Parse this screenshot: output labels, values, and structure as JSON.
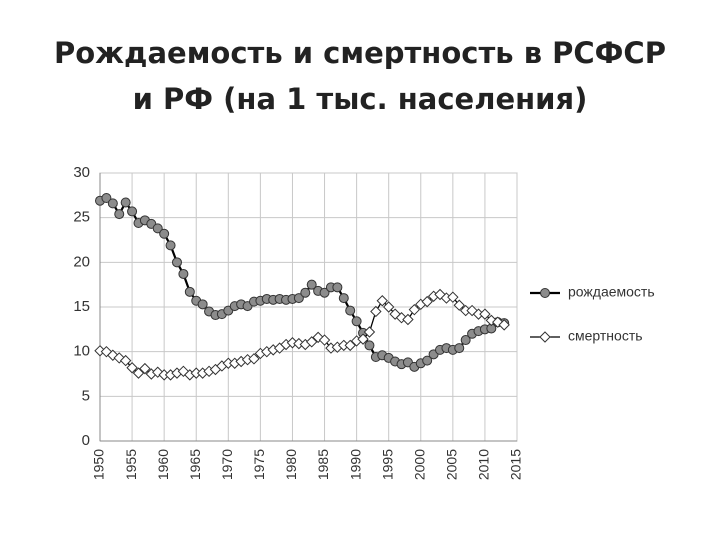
{
  "chart_data": {
    "type": "line",
    "title": "Рождаемость и смертность в РСФСР и РФ (на 1 тыс. населения)",
    "x": [
      1950,
      1951,
      1952,
      1953,
      1954,
      1955,
      1956,
      1957,
      1958,
      1959,
      1960,
      1961,
      1962,
      1963,
      1964,
      1965,
      1966,
      1967,
      1968,
      1969,
      1970,
      1971,
      1972,
      1973,
      1974,
      1975,
      1976,
      1977,
      1978,
      1979,
      1980,
      1981,
      1982,
      1983,
      1984,
      1985,
      1986,
      1987,
      1988,
      1989,
      1990,
      1991,
      1992,
      1993,
      1994,
      1995,
      1996,
      1997,
      1998,
      1999,
      2000,
      2001,
      2002,
      2003,
      2004,
      2005,
      2006,
      2007,
      2008,
      2009,
      2010,
      2011,
      2012,
      2013
    ],
    "series": [
      {
        "name": "рождаемость",
        "color": "#8c8c8c",
        "marker": "circle",
        "values": [
          26.9,
          27.2,
          26.6,
          25.4,
          26.7,
          25.7,
          24.4,
          24.7,
          24.3,
          23.8,
          23.2,
          21.9,
          20.0,
          18.7,
          16.7,
          15.7,
          15.3,
          14.5,
          14.1,
          14.2,
          14.6,
          15.1,
          15.3,
          15.1,
          15.6,
          15.7,
          15.9,
          15.8,
          15.9,
          15.8,
          15.9,
          16.0,
          16.6,
          17.5,
          16.8,
          16.6,
          17.2,
          17.2,
          16.0,
          14.6,
          13.4,
          12.1,
          10.7,
          9.4,
          9.6,
          9.3,
          8.9,
          8.6,
          8.8,
          8.3,
          8.7,
          9.0,
          9.7,
          10.2,
          10.4,
          10.2,
          10.4,
          11.3,
          12.0,
          12.3,
          12.5,
          12.6,
          13.3,
          13.2
        ]
      },
      {
        "name": "смертность",
        "color": "#ffffff",
        "marker": "diamond",
        "values": [
          10.1,
          10.0,
          9.6,
          9.3,
          9.0,
          8.2,
          7.6,
          8.1,
          7.5,
          7.7,
          7.4,
          7.4,
          7.6,
          7.8,
          7.4,
          7.6,
          7.6,
          7.8,
          8.0,
          8.4,
          8.7,
          8.7,
          8.9,
          9.1,
          9.2,
          9.8,
          10.0,
          10.2,
          10.4,
          10.8,
          11.0,
          10.9,
          10.8,
          11.1,
          11.6,
          11.3,
          10.4,
          10.5,
          10.7,
          10.7,
          11.2,
          11.4,
          12.2,
          14.5,
          15.7,
          15.0,
          14.2,
          13.8,
          13.6,
          14.7,
          15.3,
          15.6,
          16.2,
          16.4,
          16.0,
          16.1,
          15.2,
          14.6,
          14.6,
          14.2,
          14.2,
          13.5,
          13.3,
          13.0
        ]
      }
    ],
    "xlim": [
      1950,
      2015
    ],
    "xticks": [
      1950,
      1955,
      1960,
      1965,
      1970,
      1975,
      1980,
      1985,
      1990,
      1995,
      2000,
      2005,
      2010,
      2015
    ],
    "ylim": [
      0,
      30
    ],
    "yticks": [
      0,
      5,
      10,
      15,
      20,
      25,
      30
    ],
    "grid": true,
    "legend": "right"
  }
}
